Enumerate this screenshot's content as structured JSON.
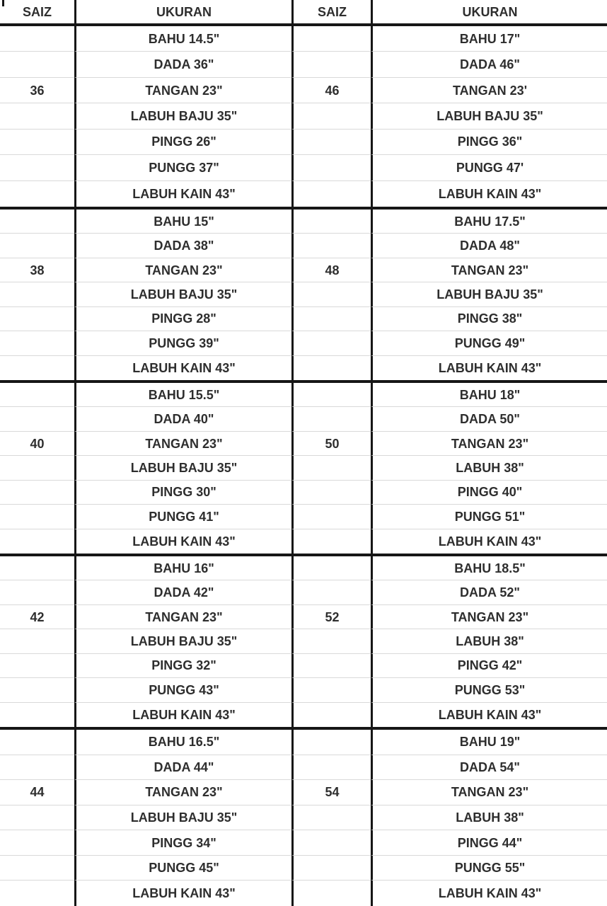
{
  "header": {
    "col1": "SAIZ",
    "col2": "UKURAN",
    "col3": "SAIZ",
    "col4": "UKURAN"
  },
  "blocks": [
    {
      "left_size": "36",
      "left": [
        "BAHU 14.5\"",
        "DADA 36\"",
        "TANGAN 23\"",
        "LABUH BAJU 35\"",
        "PINGG 26\"",
        "PUNGG 37\"",
        "LABUH KAIN 43\""
      ],
      "right_size": "46",
      "right": [
        "BAHU 17\"",
        "DADA 46\"",
        "TANGAN 23'",
        "LABUH BAJU 35\"",
        "PINGG 36\"",
        "PUNGG 47'",
        "LABUH KAIN 43\""
      ]
    },
    {
      "left_size": "38",
      "left": [
        "BAHU 15\"",
        "DADA 38\"",
        "TANGAN 23\"",
        "LABUH BAJU 35\"",
        "PINGG 28\"",
        "PUNGG 39\"",
        "LABUH KAIN 43\""
      ],
      "right_size": "48",
      "right": [
        "BAHU 17.5\"",
        "DADA 48\"",
        "TANGAN 23\"",
        "LABUH BAJU 35\"",
        "PINGG 38\"",
        "PUNGG 49\"",
        "LABUH KAIN 43\""
      ]
    },
    {
      "left_size": "40",
      "left": [
        "BAHU 15.5\"",
        "DADA 40\"",
        "TANGAN 23\"",
        "LABUH BAJU 35\"",
        "PINGG 30\"",
        "PUNGG 41\"",
        "LABUH KAIN 43\""
      ],
      "right_size": "50",
      "right": [
        "BAHU 18\"",
        "DADA 50\"",
        "TANGAN 23\"",
        "LABUH 38\"",
        "PINGG 40\"",
        "PUNGG 51\"",
        "LABUH KAIN 43\""
      ]
    },
    {
      "left_size": "42",
      "left": [
        "BAHU 16\"",
        "DADA 42\"",
        "TANGAN 23\"",
        "LABUH BAJU 35\"",
        "PINGG 32\"",
        "PUNGG 43\"",
        "LABUH KAIN 43\""
      ],
      "right_size": "52",
      "right": [
        "BAHU 18.5\"",
        "DADA 52\"",
        "TANGAN 23\"",
        "LABUH 38\"",
        "PINGG 42\"",
        "PUNGG 53\"",
        "LABUH KAIN 43\""
      ]
    },
    {
      "left_size": "44",
      "left": [
        "BAHU 16.5\"",
        "DADA 44\"",
        "TANGAN 23\"",
        "LABUH BAJU 35\"",
        "PINGG 34\"",
        "PUNGG 45\"",
        "LABUH KAIN 43\""
      ],
      "right_size": "54",
      "right": [
        "BAHU 19\"",
        "DADA 54\"",
        "TANGAN 23\"",
        "LABUH 38\"",
        "PINGG 44\"",
        "PUNGG 55\"",
        "LABUH KAIN 43\""
      ]
    }
  ],
  "colors": {
    "text": "#2e2e2e",
    "thick_line": "#161616",
    "thin_line": "#d9d9d9",
    "background": "#ffffff"
  }
}
